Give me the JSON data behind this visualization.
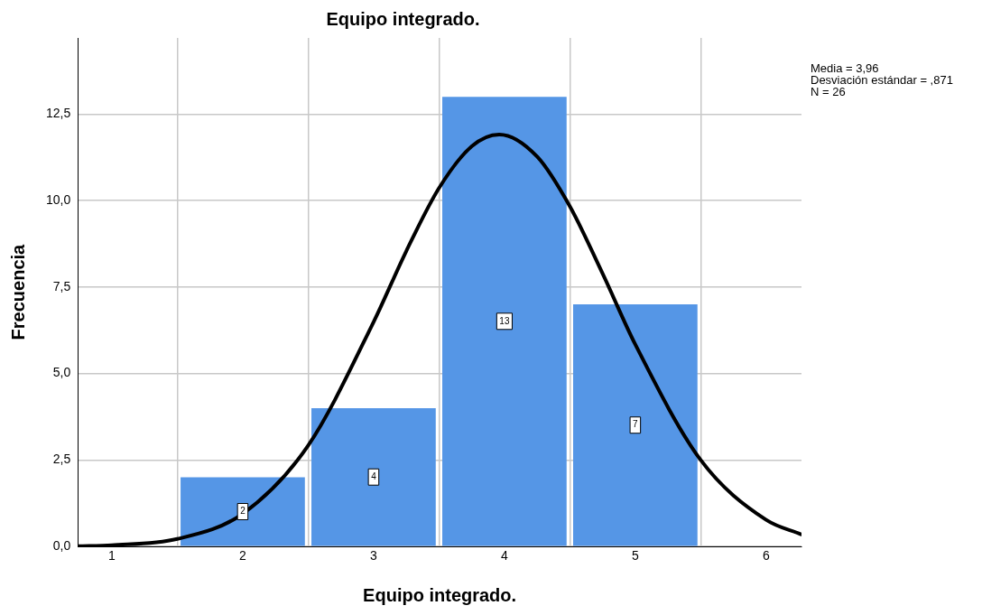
{
  "chart_data": {
    "type": "histogram",
    "title": "Equipo integrado.",
    "xlabel": "Equipo integrado.",
    "ylabel": "Frecuencia",
    "series": [
      {
        "bins": [
          1.5,
          2.5,
          3.5,
          4.5,
          5.5
        ],
        "values": [
          2,
          4,
          13,
          7
        ],
        "value_labels": [
          "2",
          "4",
          "13",
          "7"
        ],
        "color": "#5596e6"
      },
      {
        "type": "line",
        "x": [
          0.74,
          1,
          1.5,
          2,
          2.5,
          3,
          3.25,
          3.5,
          3.75,
          3.96,
          4.25,
          4.5,
          4.75,
          5,
          5.5,
          6,
          6.27
        ],
        "values": [
          0.01,
          0.04,
          0.22,
          0.95,
          2.92,
          6.49,
          8.54,
          10.36,
          11.57,
          11.91,
          11.27,
          9.83,
          7.89,
          5.84,
          2.5,
          0.77,
          0.35
        ],
        "color": "#000000"
      }
    ],
    "xlim": [
      0.74,
      6.27
    ],
    "xticks": [
      1,
      2,
      3,
      4,
      5,
      6
    ],
    "ylim": [
      0,
      14.7
    ],
    "yticks": [
      {
        "value": 0,
        "label": "0,0"
      },
      {
        "value": 2.5,
        "label": "2,5"
      },
      {
        "value": 5,
        "label": "5,0"
      },
      {
        "value": 7.5,
        "label": "7,5"
      },
      {
        "value": 10,
        "label": "10,0"
      },
      {
        "value": 12.5,
        "label": "12,5"
      }
    ],
    "grid": true,
    "legend": false,
    "marker": "none",
    "line_style": "solid",
    "annotations": [
      "Media = 3,96",
      "Desviación estándar = ,871",
      "N = 26"
    ]
  }
}
